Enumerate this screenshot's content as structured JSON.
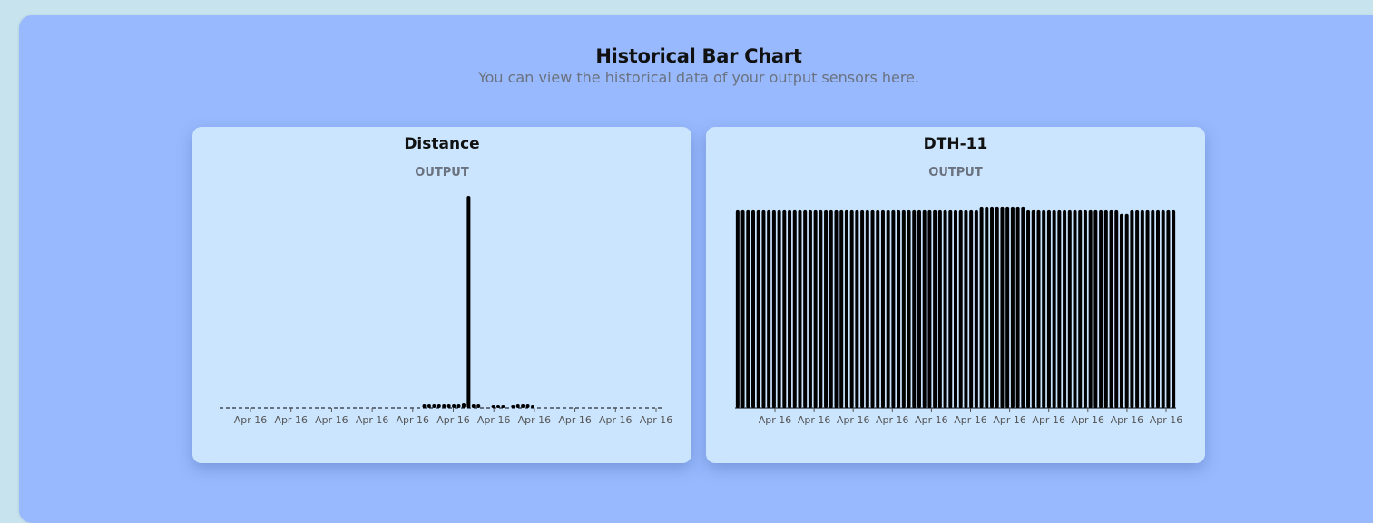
{
  "header": {
    "title": "Historical Bar Chart",
    "subtitle": "You can view the historical data of your output sensors here."
  },
  "cards": [
    {
      "title": "Distance",
      "subtitle": "OUTPUT"
    },
    {
      "title": "DTH-11",
      "subtitle": "OUTPUT"
    }
  ],
  "chart_data": [
    {
      "type": "bar",
      "title": "Distance",
      "subtitle": "OUTPUT",
      "xlabel": "",
      "ylabel": "",
      "grid": false,
      "legend": "none",
      "tick_labels": [
        "Apr 16",
        "Apr 16",
        "Apr 16",
        "Apr 16",
        "Apr 16",
        "Apr 16",
        "Apr 16",
        "Apr 16",
        "Apr 16",
        "Apr 16",
        "Apr 16"
      ],
      "ylim": [
        0,
        240
      ],
      "values": [
        0,
        0,
        0,
        0,
        0,
        0,
        0,
        0,
        0,
        0,
        0,
        0,
        0,
        0,
        0,
        0,
        0,
        0,
        0,
        0,
        0,
        0,
        0,
        0,
        0,
        0,
        0,
        0,
        0,
        0,
        0,
        0,
        0,
        0,
        0,
        0,
        0,
        0,
        0,
        0,
        0,
        4,
        4,
        4,
        4,
        4,
        4,
        4,
        4,
        5,
        236,
        4,
        4,
        0,
        0,
        3,
        3,
        3,
        0,
        3,
        4,
        4,
        4,
        3,
        0,
        0,
        0,
        0,
        0,
        0,
        0,
        0,
        0,
        0,
        0,
        0,
        0,
        0,
        0,
        0,
        0,
        0,
        0,
        0,
        0,
        0,
        0,
        0,
        0,
        0
      ],
      "color": "#000000"
    },
    {
      "type": "bar",
      "title": "DTH-11",
      "subtitle": "OUTPUT",
      "xlabel": "",
      "ylabel": "",
      "grid": false,
      "legend": "none",
      "tick_labels": [
        "Apr 16",
        "Apr 16",
        "Apr 16",
        "Apr 16",
        "Apr 16",
        "Apr 16",
        "Apr 16",
        "Apr 16",
        "Apr 16",
        "Apr 16",
        "Apr 16"
      ],
      "ylim": [
        0,
        240
      ],
      "values": [
        220,
        220,
        220,
        220,
        220,
        220,
        220,
        220,
        220,
        220,
        220,
        220,
        220,
        220,
        220,
        220,
        220,
        220,
        220,
        220,
        220,
        220,
        220,
        220,
        220,
        220,
        220,
        220,
        220,
        220,
        220,
        220,
        220,
        220,
        220,
        220,
        220,
        220,
        220,
        220,
        220,
        220,
        220,
        220,
        220,
        220,
        220,
        224,
        224,
        224,
        224,
        224,
        224,
        224,
        224,
        224,
        220,
        220,
        220,
        220,
        220,
        220,
        220,
        220,
        220,
        220,
        220,
        220,
        220,
        220,
        220,
        220,
        220,
        220,
        216,
        216,
        220,
        220,
        220,
        220,
        220,
        220,
        220,
        220,
        220
      ],
      "color": "#000000"
    }
  ]
}
